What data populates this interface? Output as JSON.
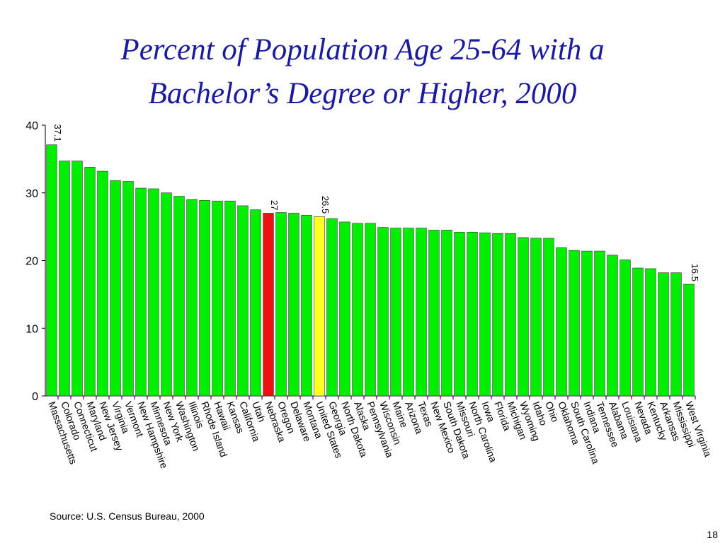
{
  "slide": {
    "title_line1": "Percent of Population Age 25-64 with a",
    "title_line2": "Bachelor’s Degree or Higher, 2000",
    "source": "Source:  U.S. Census Bureau, 2000",
    "page_number": "18"
  },
  "colors": {
    "bar_default": "#00ee00",
    "bar_nebraska": "#ee1111",
    "bar_united_states": "#ffff22",
    "title": "#1a1aa0"
  },
  "chart_data": {
    "type": "bar",
    "title": "Percent of Population Age 25-64 with a Bachelor’s Degree or Higher, 2000",
    "xlabel": "",
    "ylabel": "",
    "ylim": [
      0,
      40
    ],
    "yticks": [
      0,
      10,
      20,
      30,
      40
    ],
    "grid": false,
    "categories": [
      "Massachusetts",
      "Colorado",
      "Connecticut",
      "Maryland",
      "New Jersey",
      "Virginia",
      "Vermont",
      "New Hampshire",
      "Minnesota",
      "New York",
      "Washington",
      "Illinois",
      "Rhode Island",
      "Hawaii",
      "Kansas",
      "California",
      "Utah",
      "Nebraska",
      "Oregon",
      "Delaware",
      "Montana",
      "United States",
      "Georgia",
      "North Dakota",
      "Alaska",
      "Pennsylvania",
      "Wisconsin",
      "Maine",
      "Arizona",
      "Texas",
      "New Mexico",
      "South Dakota",
      "Missouri",
      "North Carolina",
      "Iowa",
      "Florida",
      "Michigan",
      "Wyoming",
      "Idaho",
      "Ohio",
      "Oklahoma",
      "South Carolina",
      "Indiana",
      "Tennessee",
      "Alabama",
      "Louisiana",
      "Nevada",
      "Kentucky",
      "Arkansas",
      "Mississippi",
      "West Virginia"
    ],
    "values": [
      37.1,
      34.7,
      34.7,
      33.8,
      33.2,
      31.8,
      31.7,
      30.7,
      30.6,
      30.0,
      29.5,
      29.0,
      28.9,
      28.8,
      28.8,
      28.1,
      27.5,
      27.0,
      27.1,
      27.0,
      26.7,
      26.5,
      26.2,
      25.7,
      25.5,
      25.5,
      24.9,
      24.8,
      24.8,
      24.8,
      24.5,
      24.5,
      24.2,
      24.2,
      24.1,
      24.0,
      24.0,
      23.4,
      23.3,
      23.3,
      21.9,
      21.5,
      21.4,
      21.4,
      20.8,
      20.1,
      18.9,
      18.8,
      18.2,
      18.2,
      16.5
    ],
    "data_labels": [
      {
        "category": "Massachusetts",
        "text": "37.1"
      },
      {
        "category": "Nebraska",
        "text": "27"
      },
      {
        "category": "United States",
        "text": "26.5"
      },
      {
        "category": "West Virginia",
        "text": "16.5"
      }
    ],
    "highlight": {
      "Nebraska": "bar_nebraska",
      "United States": "bar_united_states"
    }
  }
}
